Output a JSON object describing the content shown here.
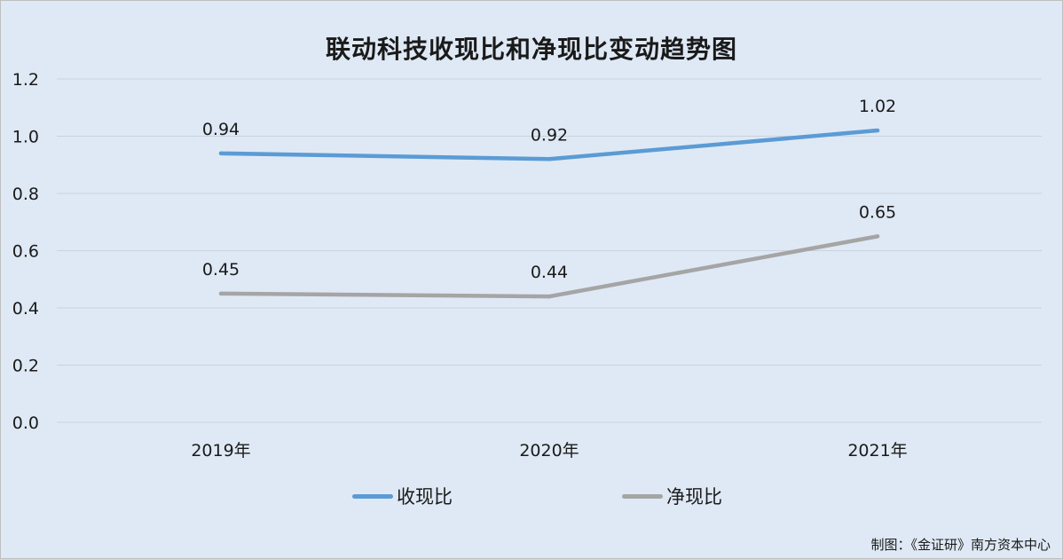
{
  "chart_data": {
    "type": "line",
    "title": "联动科技收现比和净现比变动趋势图",
    "categories": [
      "2019年",
      "2020年",
      "2021年"
    ],
    "ylim": [
      0,
      1.2
    ],
    "yticks": [
      "0.0",
      "0.2",
      "0.4",
      "0.6",
      "0.8",
      "1.0",
      "1.2"
    ],
    "grid": true,
    "legend_position": "bottom",
    "series": [
      {
        "name": "收现比",
        "values": [
          0.94,
          0.92,
          1.02
        ],
        "labels": [
          "0.94",
          "0.92",
          "1.02"
        ],
        "color": "#5b9bd5"
      },
      {
        "name": "净现比",
        "values": [
          0.45,
          0.44,
          0.65
        ],
        "labels": [
          "0.45",
          "0.44",
          "0.65"
        ],
        "color": "#a5a5a5"
      }
    ]
  },
  "source_note": "制图：《金证研》南方资本中心"
}
